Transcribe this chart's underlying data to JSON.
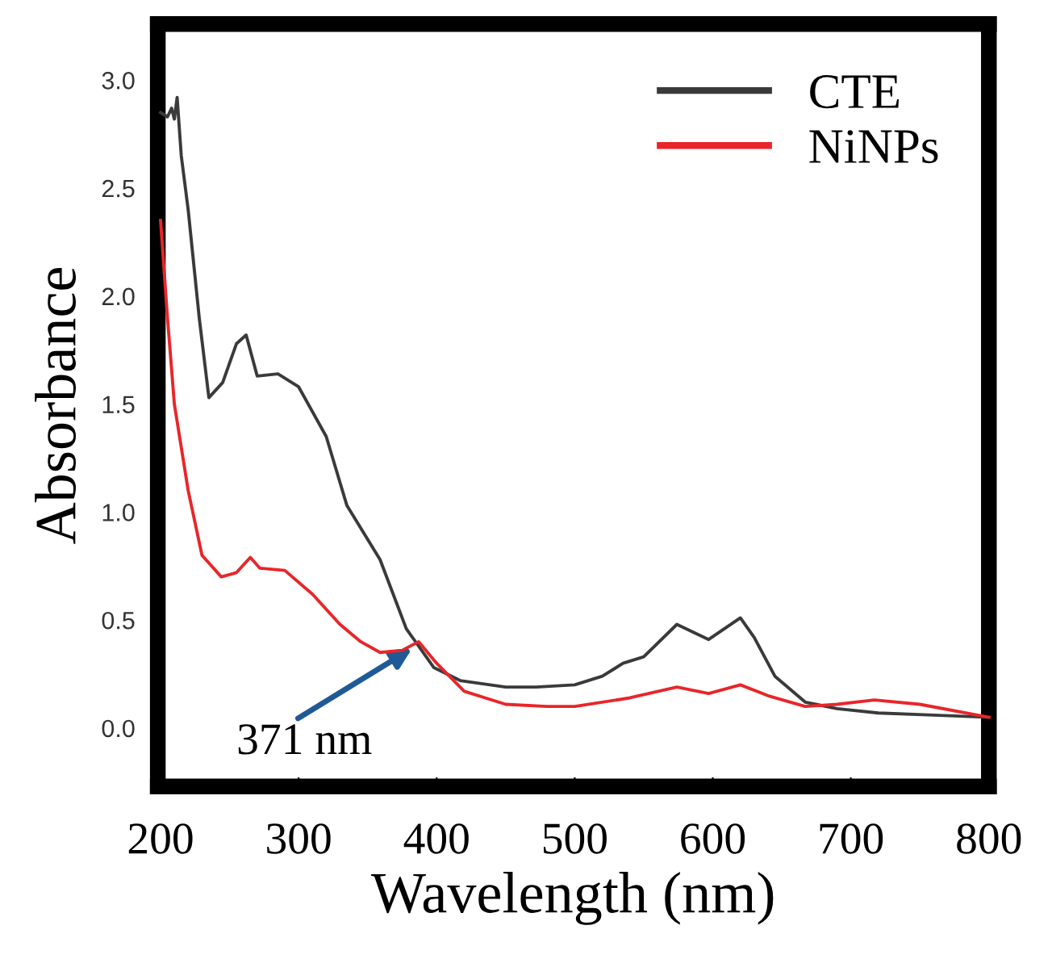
{
  "chart_data": {
    "type": "line",
    "xlabel": "Wavelength (nm)",
    "ylabel": "Absorbance",
    "xlim": [
      198,
      800
    ],
    "ylim": [
      -0.27,
      3.26
    ],
    "xticks": [
      200,
      300,
      400,
      500,
      600,
      700,
      800
    ],
    "yticks": [
      {
        "value": 0,
        "label": "0.0"
      },
      0.5,
      {
        "value": 1,
        "label": "1.0"
      },
      1.5,
      {
        "value": 2,
        "label": "2.0"
      },
      2.5,
      {
        "value": 3,
        "label": "3.0"
      }
    ],
    "grid": false,
    "legend": "top right",
    "marker": "none",
    "line_style": "solid",
    "annotations": [
      {
        "text": "371 nm",
        "x": 385,
        "y": 0.38
      }
    ],
    "series": [
      {
        "name": "CTE",
        "color": "#3a3a3a",
        "x": [
          200,
          205,
          208,
          210,
          212,
          215,
          220,
          228,
          235,
          245,
          255,
          262,
          270,
          285,
          300,
          320,
          335,
          359,
          378,
          398,
          417,
          450,
          472,
          500,
          520,
          535,
          550,
          574,
          597,
          620,
          630,
          645,
          667,
          690,
          720,
          760,
          800
        ],
        "values": [
          2.85,
          2.83,
          2.87,
          2.82,
          2.92,
          2.65,
          2.4,
          1.9,
          1.53,
          1.6,
          1.78,
          1.82,
          1.63,
          1.64,
          1.58,
          1.35,
          1.03,
          0.78,
          0.46,
          0.28,
          0.22,
          0.19,
          0.19,
          0.2,
          0.24,
          0.3,
          0.33,
          0.48,
          0.41,
          0.51,
          0.42,
          0.24,
          0.12,
          0.09,
          0.07,
          0.06,
          0.05
        ]
      },
      {
        "name": "NiNPs",
        "color": "#e8262a",
        "x": [
          200,
          205,
          210,
          220,
          230,
          244,
          255,
          265,
          272,
          290,
          310,
          330,
          345,
          359,
          375,
          387,
          400,
          420,
          450,
          480,
          500,
          540,
          574,
          597,
          620,
          640,
          667,
          690,
          717,
          750,
          800
        ],
        "values": [
          2.35,
          1.9,
          1.5,
          1.1,
          0.8,
          0.7,
          0.72,
          0.79,
          0.74,
          0.73,
          0.62,
          0.48,
          0.4,
          0.35,
          0.36,
          0.4,
          0.3,
          0.17,
          0.11,
          0.1,
          0.1,
          0.14,
          0.19,
          0.16,
          0.2,
          0.15,
          0.1,
          0.11,
          0.13,
          0.11,
          0.05
        ]
      }
    ]
  }
}
